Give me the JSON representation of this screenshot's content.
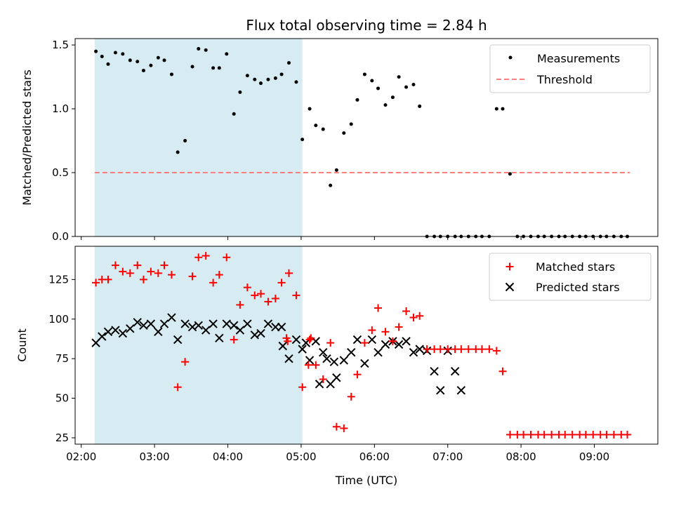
{
  "title": "Flux total observing time = 2.84 h",
  "colors": {
    "measure": "#000000",
    "threshold": "#ff7f7f",
    "shade": "#add8e6",
    "matched": "#ff0000",
    "predicted": "#000000"
  },
  "chart_data": [
    {
      "type": "scatter",
      "ylabel": "Matched/Predicted stars",
      "ylim": [
        0,
        1.55
      ],
      "yticks": [
        {
          "v": 0,
          "label": "0.0"
        },
        {
          "v": 0.5,
          "label": "0.5"
        },
        {
          "v": 1.0,
          "label": "1.0"
        },
        {
          "v": 1.5,
          "label": "1.5"
        }
      ],
      "shaded_region": {
        "x": [
          "02:11",
          "05:01"
        ]
      },
      "legend": {
        "placement": "top-right",
        "entries": [
          "Measurements",
          "Threshold"
        ]
      },
      "threshold": {
        "name": "Threshold",
        "y": 0.5,
        "x": [
          "02:11",
          "09:29"
        ]
      },
      "series": [
        {
          "name": "Measurements",
          "x": [
            "02:12",
            "02:17",
            "02:22",
            "02:28",
            "02:34",
            "02:40",
            "02:46",
            "02:51",
            "02:57",
            "03:03",
            "03:08",
            "03:14",
            "03:19",
            "03:25",
            "03:31",
            "03:36",
            "03:42",
            "03:48",
            "03:53",
            "03:59",
            "04:05",
            "04:10",
            "04:16",
            "04:22",
            "04:27",
            "04:33",
            "04:39",
            "04:44",
            "04:50",
            "04:56",
            "05:01",
            "05:07",
            "05:12",
            "05:18",
            "05:24",
            "05:29",
            "05:35",
            "05:41",
            "05:46",
            "05:52",
            "05:58",
            "06:03",
            "06:09",
            "06:15",
            "06:20",
            "06:26",
            "06:32",
            "06:37",
            "06:43",
            "06:49",
            "06:54",
            "07:00",
            "07:06",
            "07:11",
            "07:17",
            "07:23",
            "07:28",
            "07:34",
            "07:40",
            "07:45",
            "07:51",
            "07:57",
            "08:02",
            "08:08",
            "08:14",
            "08:19",
            "08:25",
            "08:31",
            "08:36",
            "08:42",
            "08:48",
            "08:53",
            "08:59",
            "09:05",
            "09:10",
            "09:16",
            "09:22",
            "09:27"
          ],
          "y": [
            1.45,
            1.41,
            1.35,
            1.44,
            1.43,
            1.38,
            1.37,
            1.3,
            1.34,
            1.4,
            1.38,
            1.27,
            0.66,
            0.75,
            1.33,
            1.47,
            1.46,
            1.32,
            1.32,
            1.43,
            0.96,
            1.13,
            1.26,
            1.23,
            1.2,
            1.23,
            1.24,
            1.27,
            1.36,
            1.21,
            0.76,
            1.0,
            0.87,
            0.84,
            0.4,
            0.52,
            0.81,
            0.88,
            1.07,
            1.27,
            1.22,
            1.16,
            1.03,
            1.09,
            1.25,
            1.17,
            1.19,
            1.02,
            0,
            0,
            0,
            0,
            0,
            0,
            0,
            0,
            0,
            0,
            1.0,
            1.0,
            0.49,
            0,
            0,
            0,
            0,
            0,
            0,
            0,
            0,
            0,
            0,
            0,
            0,
            0,
            0,
            0,
            0,
            0
          ]
        }
      ]
    },
    {
      "type": "scatter",
      "xlabel": "Time (UTC)",
      "ylabel": "Count",
      "ylim": [
        21,
        146
      ],
      "yticks": [
        {
          "v": 25,
          "label": "25"
        },
        {
          "v": 50,
          "label": "50"
        },
        {
          "v": 75,
          "label": "75"
        },
        {
          "v": 100,
          "label": "100"
        },
        {
          "v": 125,
          "label": "125"
        }
      ],
      "xlim": [
        "01:55",
        "09:52"
      ],
      "xticks": [
        "02:00",
        "03:00",
        "04:00",
        "05:00",
        "06:00",
        "07:00",
        "08:00",
        "09:00"
      ],
      "shaded_region": {
        "x": [
          "02:11",
          "05:01"
        ]
      },
      "legend": {
        "placement": "top-right",
        "entries": [
          "Matched stars",
          "Predicted stars"
        ]
      },
      "series": [
        {
          "name": "Matched stars",
          "x": [
            "02:12",
            "02:17",
            "02:22",
            "02:28",
            "02:34",
            "02:40",
            "02:46",
            "02:51",
            "02:57",
            "03:03",
            "03:08",
            "03:14",
            "03:19",
            "03:25",
            "03:31",
            "03:36",
            "03:42",
            "03:48",
            "03:53",
            "03:59",
            "04:05",
            "04:10",
            "04:16",
            "04:22",
            "04:27",
            "04:33",
            "04:39",
            "04:44",
            "04:50",
            "04:56",
            "05:01",
            "05:07",
            "05:12",
            "05:18",
            "05:24",
            "05:29",
            "05:35",
            "05:41",
            "05:46",
            "05:52",
            "05:58",
            "06:03",
            "06:09",
            "06:15",
            "06:20",
            "06:26",
            "06:32",
            "06:37",
            "06:43",
            "06:49",
            "06:54",
            "07:00",
            "07:06",
            "07:11",
            "07:17",
            "07:23",
            "07:28",
            "07:34",
            "07:40",
            "07:45",
            "07:51",
            "07:57",
            "08:02",
            "08:08",
            "08:14",
            "08:19",
            "08:25",
            "08:31",
            "08:36",
            "08:42",
            "08:48",
            "08:53",
            "08:59",
            "09:05",
            "09:10",
            "09:16",
            "09:22",
            "09:27",
            "04:48",
            "04:49",
            "05:06",
            "05:08"
          ],
          "y": [
            123,
            125,
            125,
            134,
            130,
            129,
            134,
            125,
            130,
            129,
            134,
            128,
            57,
            73,
            127,
            139,
            140,
            123,
            128,
            139,
            87,
            109,
            120,
            115,
            116,
            111,
            113,
            123,
            129,
            115,
            57,
            87,
            71,
            62,
            85,
            32,
            31,
            51,
            65,
            85,
            93,
            107,
            92,
            86,
            95,
            105,
            101,
            102,
            81,
            81,
            81,
            81,
            81,
            81,
            81,
            81,
            81,
            81,
            80,
            67,
            27,
            27,
            27,
            27,
            27,
            27,
            27,
            27,
            27,
            27,
            27,
            27,
            27,
            27,
            27,
            27,
            27,
            27,
            88,
            86,
            71,
            88
          ]
        },
        {
          "name": "Predicted stars",
          "x": [
            "02:12",
            "02:17",
            "02:22",
            "02:28",
            "02:34",
            "02:40",
            "02:46",
            "02:51",
            "02:57",
            "03:03",
            "03:08",
            "03:14",
            "03:19",
            "03:25",
            "03:31",
            "03:36",
            "03:42",
            "03:48",
            "03:53",
            "03:59",
            "04:05",
            "04:10",
            "04:16",
            "04:22",
            "04:27",
            "04:33",
            "04:39",
            "04:44",
            "04:50",
            "04:56",
            "05:01",
            "05:07",
            "05:12",
            "05:18",
            "05:24",
            "05:29",
            "05:35",
            "05:41",
            "05:46",
            "05:52",
            "05:58",
            "06:03",
            "06:09",
            "06:15",
            "06:20",
            "06:26",
            "06:32",
            "06:37",
            "06:43",
            "06:49",
            "06:54",
            "07:00",
            "07:06",
            "07:11",
            "04:45",
            "05:04",
            "05:15",
            "05:21",
            "05:27"
          ],
          "y": [
            85,
            89,
            92,
            93,
            91,
            94,
            98,
            96,
            97,
            92,
            97,
            101,
            87,
            97,
            95,
            96,
            93,
            97,
            88,
            97,
            96,
            93,
            97,
            90,
            91,
            97,
            95,
            95,
            75,
            87,
            81,
            74,
            86,
            79,
            59,
            63,
            74,
            79,
            87,
            72,
            87,
            79,
            84,
            86,
            84,
            86,
            79,
            81,
            80,
            67,
            55,
            80,
            67,
            55,
            83,
            85,
            59,
            75,
            73
          ]
        }
      ]
    }
  ]
}
